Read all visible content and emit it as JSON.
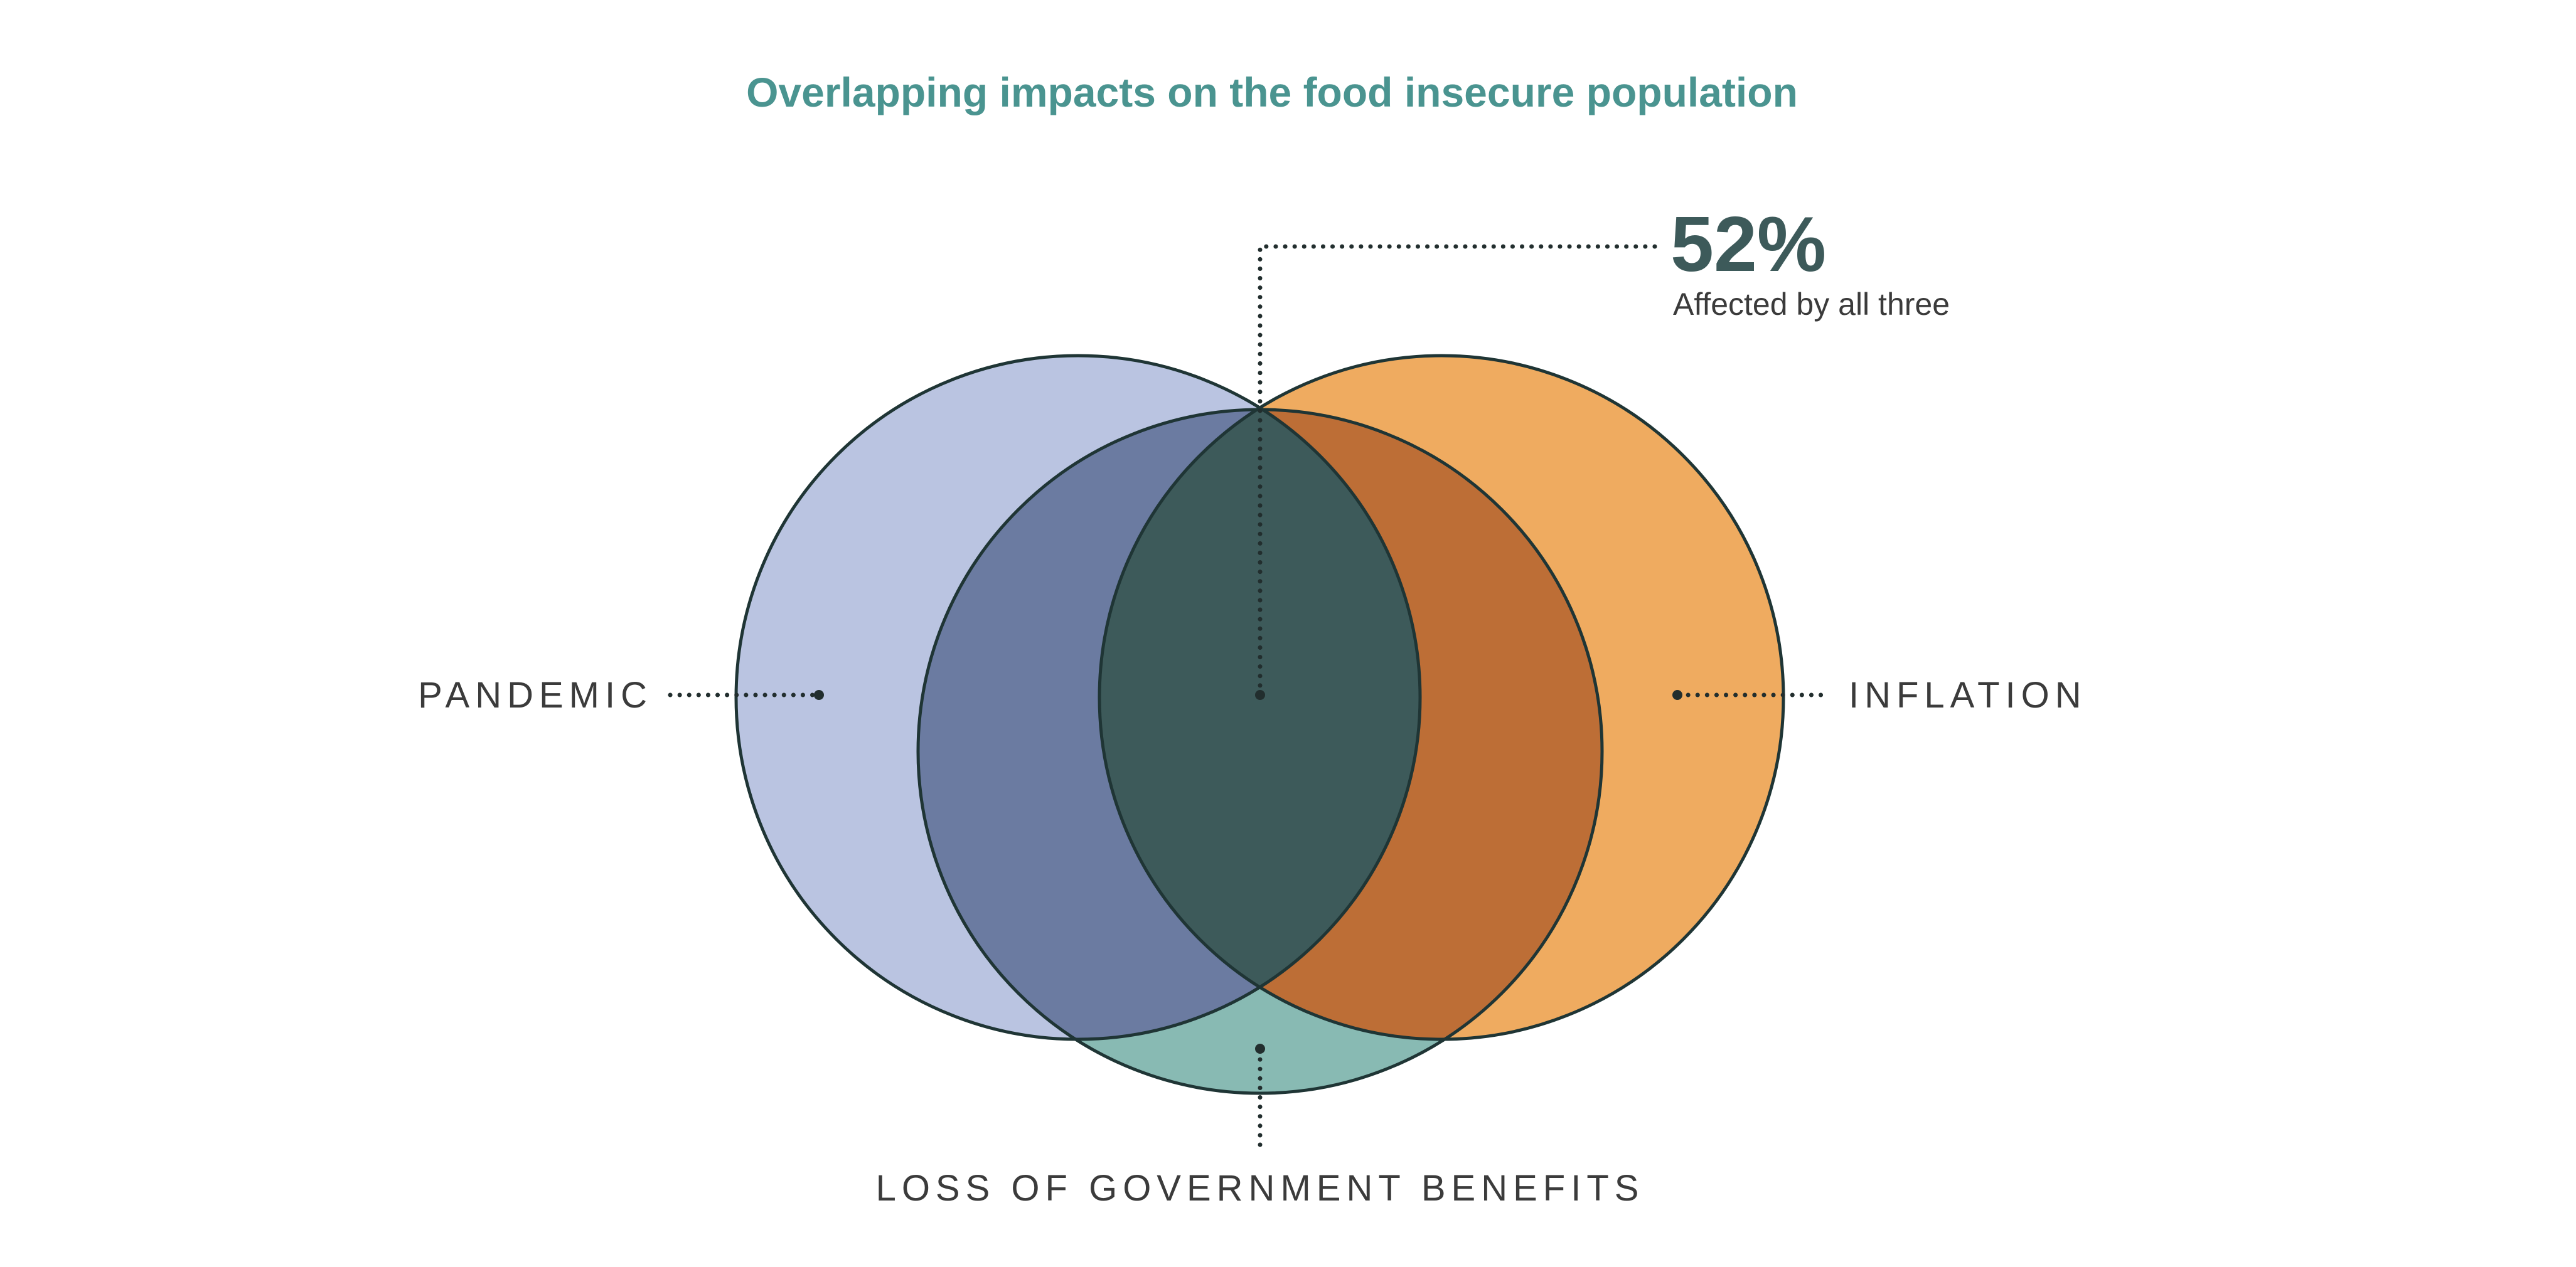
{
  "title": "Overlapping impacts on the food insecure population",
  "stat": {
    "value": "52%",
    "caption": "Affected by all three"
  },
  "sets": [
    {
      "key": "pandemic",
      "label": "PANDEMIC",
      "color": "#bac4e1"
    },
    {
      "key": "inflation",
      "label": "INFLATION",
      "color": "#efab60"
    },
    {
      "key": "benefits",
      "label": "LOSS OF GOVERNMENT BENEFITS",
      "color": "#88bab3"
    }
  ],
  "overlap_colors": {
    "pandemic_benefits": "#6b7ba1",
    "inflation_benefits": "#bd6e36",
    "all_three": "#3d5a5a"
  },
  "colors": {
    "title": "#4a9490",
    "outline": "#1f3535"
  }
}
